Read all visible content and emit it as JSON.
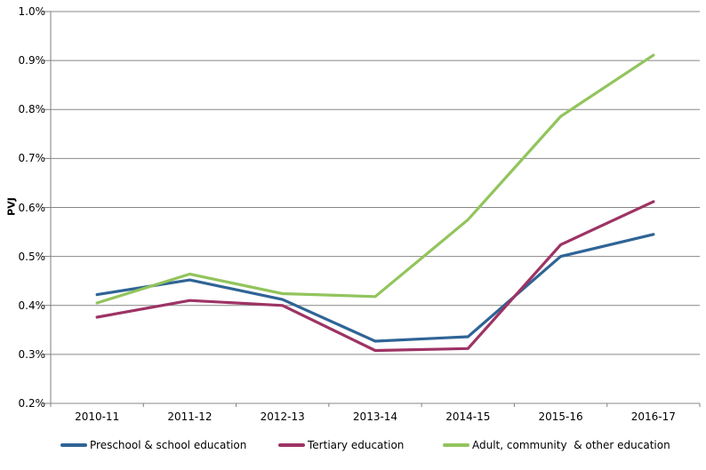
{
  "chart_data": {
    "type": "line",
    "title": "",
    "xlabel": "",
    "ylabel": "PVJ",
    "categories": [
      "2010-11",
      "2011-12",
      "2012-13",
      "2013-14",
      "2014-15",
      "2015-16",
      "2016-17"
    ],
    "series": [
      {
        "name": "Preschool & school education",
        "color": "#2F6496",
        "values": [
          0.422,
          0.452,
          0.412,
          0.327,
          0.336,
          0.5,
          0.545
        ]
      },
      {
        "name": "Tertiary education",
        "color": "#9D3364",
        "values": [
          0.376,
          0.41,
          0.4,
          0.308,
          0.312,
          0.524,
          0.612
        ]
      },
      {
        "name": "Adult, community  & other education",
        "color": "#92C45C",
        "values": [
          0.405,
          0.464,
          0.424,
          0.418,
          0.575,
          0.786,
          0.911
        ]
      }
    ],
    "ylim": [
      0.2,
      1.0
    ],
    "y_tick_step": 0.1,
    "y_ticks": [
      {
        "v": 0.2,
        "label": "0.2%"
      },
      {
        "v": 0.3,
        "label": "0.3%"
      },
      {
        "v": 0.4,
        "label": "0.4%"
      },
      {
        "v": 0.5,
        "label": "0.5%"
      },
      {
        "v": 0.6,
        "label": "0.6%"
      },
      {
        "v": 0.7,
        "label": "0.7%"
      },
      {
        "v": 0.8,
        "label": "0.8%"
      },
      {
        "v": 0.9,
        "label": "0.9%"
      },
      {
        "v": 1.0,
        "label": "1.0%"
      }
    ],
    "grid": true,
    "legend_position": "bottom"
  },
  "style": {
    "gridline_color": "#878787",
    "axis_color": "#7F7F7F",
    "text_color": "#000000",
    "line_width": 3.2
  }
}
